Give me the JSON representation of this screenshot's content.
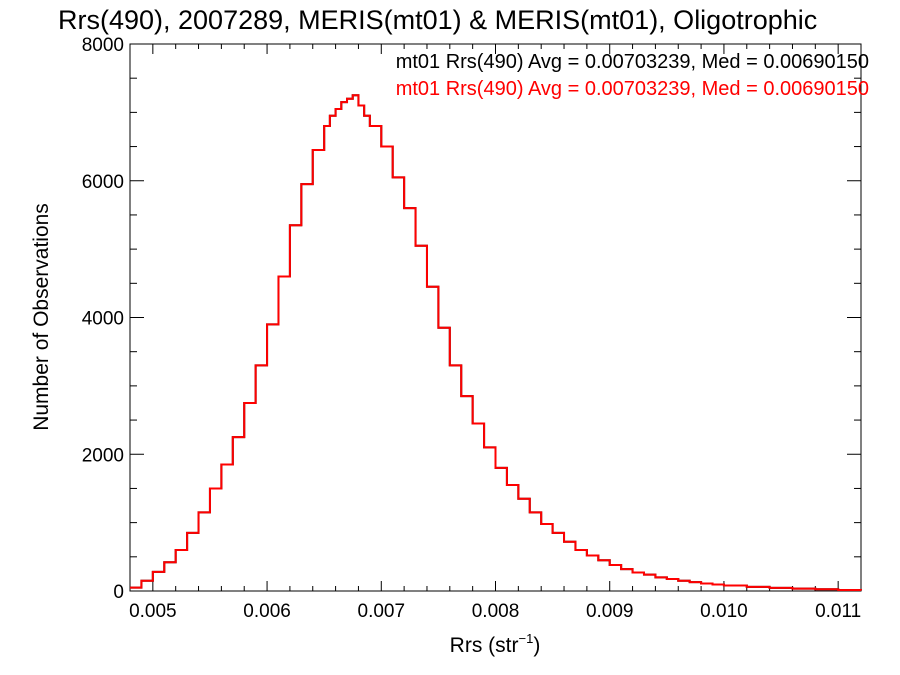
{
  "chart_data": {
    "type": "line",
    "step": true,
    "title": "Rrs(490), 2007289, MERIS(mt01) & MERIS(mt01), Oligotrophic",
    "xlabel_base": "Rrs (str",
    "xlabel_sup": "−1",
    "xlabel_end": ")",
    "ylabel": "Number of Observations",
    "xlim": [
      0.0048,
      0.0112
    ],
    "ylim": [
      0,
      8000
    ],
    "x_ticks": [
      0.005,
      0.006,
      0.007,
      0.008,
      0.009,
      0.01,
      0.011
    ],
    "x_tick_labels": [
      "0.005",
      "0.006",
      "0.007",
      "0.008",
      "0.009",
      "0.010",
      "0.011"
    ],
    "y_ticks": [
      0,
      2000,
      4000,
      6000,
      8000
    ],
    "y_tick_labels": [
      "0",
      "2000",
      "4000",
      "6000",
      "8000"
    ],
    "grid": false,
    "legend_position": "top-right",
    "series": [
      {
        "name": "mt01 Rrs(490) Avg = 0.00703239, Med = 0.00690150",
        "color": "#000000",
        "x": [
          0.0048,
          0.0049,
          0.005,
          0.0051,
          0.0052,
          0.0053,
          0.0054,
          0.0055,
          0.0056,
          0.0057,
          0.0058,
          0.0059,
          0.006,
          0.0061,
          0.0062,
          0.0063,
          0.0064,
          0.0065,
          0.00655,
          0.0066,
          0.00665,
          0.0067,
          0.00675,
          0.0068,
          0.00685,
          0.0069,
          0.007,
          0.0071,
          0.0072,
          0.0073,
          0.0074,
          0.0075,
          0.0076,
          0.0077,
          0.0078,
          0.0079,
          0.008,
          0.0081,
          0.0082,
          0.0083,
          0.0084,
          0.0085,
          0.0086,
          0.0087,
          0.0088,
          0.0089,
          0.009,
          0.0091,
          0.0092,
          0.0093,
          0.0094,
          0.0095,
          0.0096,
          0.0097,
          0.0098,
          0.0099,
          0.01,
          0.0102,
          0.0104,
          0.0106,
          0.0108,
          0.011,
          0.0112
        ],
        "values": [
          50,
          150,
          280,
          420,
          600,
          850,
          1150,
          1500,
          1850,
          2250,
          2750,
          3300,
          3900,
          4600,
          5350,
          5950,
          6450,
          6800,
          6950,
          7050,
          7150,
          7200,
          7250,
          7100,
          6950,
          6800,
          6500,
          6050,
          5600,
          5050,
          4450,
          3850,
          3300,
          2850,
          2450,
          2100,
          1800,
          1550,
          1350,
          1150,
          980,
          850,
          720,
          600,
          520,
          450,
          380,
          320,
          270,
          240,
          200,
          175,
          150,
          130,
          110,
          95,
          80,
          60,
          45,
          35,
          25,
          15,
          10
        ]
      },
      {
        "name": "mt01 Rrs(490) Avg = 0.00703239, Med = 0.00690150",
        "color": "#ff0000",
        "x": [
          0.0048,
          0.0049,
          0.005,
          0.0051,
          0.0052,
          0.0053,
          0.0054,
          0.0055,
          0.0056,
          0.0057,
          0.0058,
          0.0059,
          0.006,
          0.0061,
          0.0062,
          0.0063,
          0.0064,
          0.0065,
          0.00655,
          0.0066,
          0.00665,
          0.0067,
          0.00675,
          0.0068,
          0.00685,
          0.0069,
          0.007,
          0.0071,
          0.0072,
          0.0073,
          0.0074,
          0.0075,
          0.0076,
          0.0077,
          0.0078,
          0.0079,
          0.008,
          0.0081,
          0.0082,
          0.0083,
          0.0084,
          0.0085,
          0.0086,
          0.0087,
          0.0088,
          0.0089,
          0.009,
          0.0091,
          0.0092,
          0.0093,
          0.0094,
          0.0095,
          0.0096,
          0.0097,
          0.0098,
          0.0099,
          0.01,
          0.0102,
          0.0104,
          0.0106,
          0.0108,
          0.011,
          0.0112
        ],
        "values": [
          50,
          150,
          280,
          420,
          600,
          850,
          1150,
          1500,
          1850,
          2250,
          2750,
          3300,
          3900,
          4600,
          5350,
          5950,
          6450,
          6800,
          6950,
          7050,
          7150,
          7200,
          7250,
          7100,
          6950,
          6800,
          6500,
          6050,
          5600,
          5050,
          4450,
          3850,
          3300,
          2850,
          2450,
          2100,
          1800,
          1550,
          1350,
          1150,
          980,
          850,
          720,
          600,
          520,
          450,
          380,
          320,
          270,
          240,
          200,
          175,
          150,
          130,
          110,
          95,
          80,
          60,
          45,
          35,
          25,
          15,
          10
        ]
      }
    ]
  }
}
